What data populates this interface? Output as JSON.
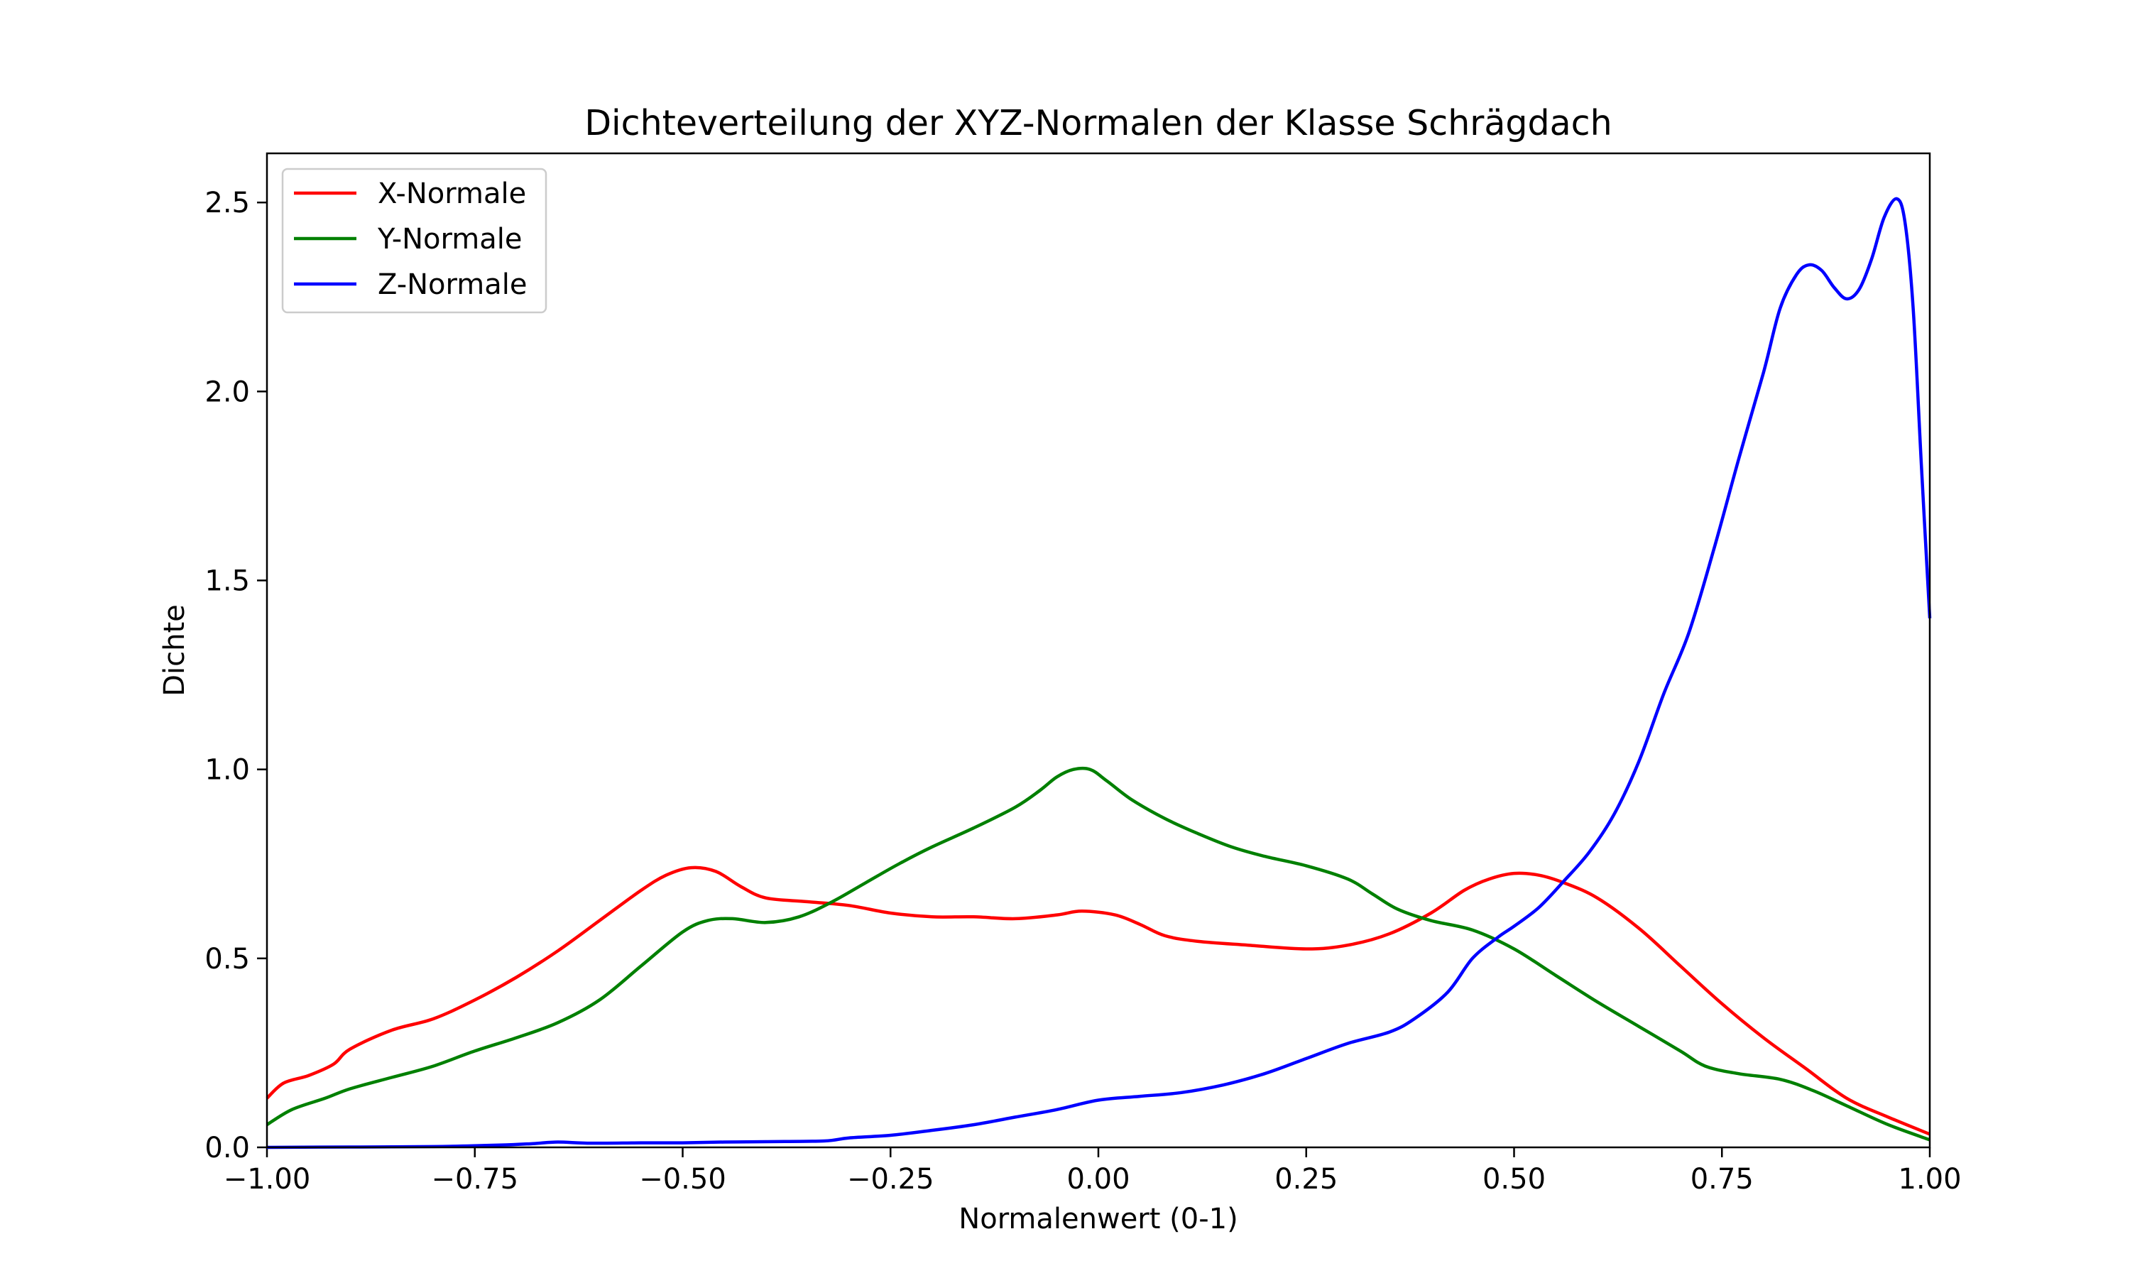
{
  "chart_data": {
    "type": "line",
    "title": "Dichteverteilung der XYZ-Normalen der Klasse Schrägdach",
    "xlabel": "Normalenwert (0-1)",
    "ylabel": "Dichte",
    "xlim": [
      -1.0,
      1.0
    ],
    "ylim": [
      0.0,
      2.63
    ],
    "grid": false,
    "legend_position": "upper left",
    "x_ticks": [
      -1.0,
      -0.75,
      -0.5,
      -0.25,
      0.0,
      0.25,
      0.5,
      0.75,
      1.0
    ],
    "x_tick_labels": [
      "−1.00",
      "−0.75",
      "−0.50",
      "−0.25",
      "0.00",
      "0.25",
      "0.50",
      "0.75",
      "1.00"
    ],
    "y_ticks": [
      0.0,
      0.5,
      1.0,
      1.5,
      2.0,
      2.5
    ],
    "y_tick_labels": [
      "0.0",
      "0.5",
      "1.0",
      "1.5",
      "2.0",
      "2.5"
    ],
    "series": [
      {
        "name": "X-Normale",
        "color": "#ff0000",
        "points": [
          [
            -1.0,
            0.13
          ],
          [
            -0.98,
            0.17
          ],
          [
            -0.95,
            0.19
          ],
          [
            -0.92,
            0.22
          ],
          [
            -0.9,
            0.26
          ],
          [
            -0.85,
            0.31
          ],
          [
            -0.8,
            0.34
          ],
          [
            -0.75,
            0.39
          ],
          [
            -0.7,
            0.45
          ],
          [
            -0.65,
            0.52
          ],
          [
            -0.6,
            0.6
          ],
          [
            -0.55,
            0.68
          ],
          [
            -0.52,
            0.72
          ],
          [
            -0.49,
            0.74
          ],
          [
            -0.46,
            0.73
          ],
          [
            -0.43,
            0.69
          ],
          [
            -0.4,
            0.66
          ],
          [
            -0.35,
            0.65
          ],
          [
            -0.3,
            0.64
          ],
          [
            -0.25,
            0.62
          ],
          [
            -0.2,
            0.61
          ],
          [
            -0.15,
            0.61
          ],
          [
            -0.1,
            0.605
          ],
          [
            -0.05,
            0.615
          ],
          [
            -0.02,
            0.625
          ],
          [
            0.02,
            0.615
          ],
          [
            0.05,
            0.59
          ],
          [
            0.08,
            0.56
          ],
          [
            0.12,
            0.545
          ],
          [
            0.18,
            0.535
          ],
          [
            0.25,
            0.525
          ],
          [
            0.3,
            0.535
          ],
          [
            0.35,
            0.565
          ],
          [
            0.4,
            0.62
          ],
          [
            0.44,
            0.68
          ],
          [
            0.47,
            0.71
          ],
          [
            0.5,
            0.725
          ],
          [
            0.53,
            0.72
          ],
          [
            0.56,
            0.7
          ],
          [
            0.6,
            0.66
          ],
          [
            0.65,
            0.58
          ],
          [
            0.7,
            0.48
          ],
          [
            0.75,
            0.38
          ],
          [
            0.8,
            0.29
          ],
          [
            0.85,
            0.21
          ],
          [
            0.9,
            0.13
          ],
          [
            0.95,
            0.08
          ],
          [
            1.0,
            0.035
          ]
        ]
      },
      {
        "name": "Y-Normale",
        "color": "#008000",
        "points": [
          [
            -1.0,
            0.06
          ],
          [
            -0.97,
            0.1
          ],
          [
            -0.93,
            0.13
          ],
          [
            -0.9,
            0.155
          ],
          [
            -0.85,
            0.185
          ],
          [
            -0.8,
            0.215
          ],
          [
            -0.75,
            0.255
          ],
          [
            -0.7,
            0.29
          ],
          [
            -0.65,
            0.33
          ],
          [
            -0.6,
            0.39
          ],
          [
            -0.55,
            0.48
          ],
          [
            -0.5,
            0.57
          ],
          [
            -0.47,
            0.6
          ],
          [
            -0.44,
            0.605
          ],
          [
            -0.4,
            0.595
          ],
          [
            -0.36,
            0.61
          ],
          [
            -0.32,
            0.65
          ],
          [
            -0.28,
            0.7
          ],
          [
            -0.24,
            0.75
          ],
          [
            -0.2,
            0.795
          ],
          [
            -0.15,
            0.845
          ],
          [
            -0.1,
            0.9
          ],
          [
            -0.07,
            0.945
          ],
          [
            -0.05,
            0.98
          ],
          [
            -0.03,
            1.0
          ],
          [
            -0.01,
            1.0
          ],
          [
            0.01,
            0.97
          ],
          [
            0.04,
            0.92
          ],
          [
            0.08,
            0.87
          ],
          [
            0.12,
            0.83
          ],
          [
            0.16,
            0.795
          ],
          [
            0.2,
            0.77
          ],
          [
            0.25,
            0.745
          ],
          [
            0.3,
            0.71
          ],
          [
            0.33,
            0.67
          ],
          [
            0.36,
            0.63
          ],
          [
            0.4,
            0.6
          ],
          [
            0.45,
            0.575
          ],
          [
            0.5,
            0.525
          ],
          [
            0.55,
            0.455
          ],
          [
            0.6,
            0.385
          ],
          [
            0.65,
            0.32
          ],
          [
            0.7,
            0.255
          ],
          [
            0.73,
            0.215
          ],
          [
            0.77,
            0.195
          ],
          [
            0.82,
            0.18
          ],
          [
            0.86,
            0.15
          ],
          [
            0.9,
            0.11
          ],
          [
            0.95,
            0.06
          ],
          [
            1.0,
            0.02
          ]
        ]
      },
      {
        "name": "Z-Normale",
        "color": "#0000ff",
        "points": [
          [
            -1.0,
            0.0
          ],
          [
            -0.9,
            0.001
          ],
          [
            -0.8,
            0.002
          ],
          [
            -0.72,
            0.006
          ],
          [
            -0.68,
            0.01
          ],
          [
            -0.65,
            0.014
          ],
          [
            -0.61,
            0.011
          ],
          [
            -0.55,
            0.012
          ],
          [
            -0.5,
            0.012
          ],
          [
            -0.45,
            0.014
          ],
          [
            -0.4,
            0.015
          ],
          [
            -0.33,
            0.017
          ],
          [
            -0.3,
            0.025
          ],
          [
            -0.25,
            0.032
          ],
          [
            -0.2,
            0.045
          ],
          [
            -0.15,
            0.06
          ],
          [
            -0.1,
            0.08
          ],
          [
            -0.05,
            0.1
          ],
          [
            0.0,
            0.125
          ],
          [
            0.05,
            0.135
          ],
          [
            0.1,
            0.145
          ],
          [
            0.15,
            0.165
          ],
          [
            0.2,
            0.195
          ],
          [
            0.25,
            0.235
          ],
          [
            0.3,
            0.275
          ],
          [
            0.35,
            0.305
          ],
          [
            0.38,
            0.34
          ],
          [
            0.42,
            0.41
          ],
          [
            0.45,
            0.5
          ],
          [
            0.48,
            0.555
          ],
          [
            0.5,
            0.585
          ],
          [
            0.53,
            0.635
          ],
          [
            0.56,
            0.705
          ],
          [
            0.59,
            0.78
          ],
          [
            0.62,
            0.88
          ],
          [
            0.65,
            1.02
          ],
          [
            0.68,
            1.2
          ],
          [
            0.71,
            1.36
          ],
          [
            0.74,
            1.58
          ],
          [
            0.77,
            1.82
          ],
          [
            0.8,
            2.05
          ],
          [
            0.82,
            2.22
          ],
          [
            0.84,
            2.31
          ],
          [
            0.855,
            2.335
          ],
          [
            0.87,
            2.32
          ],
          [
            0.885,
            2.275
          ],
          [
            0.9,
            2.245
          ],
          [
            0.915,
            2.27
          ],
          [
            0.93,
            2.35
          ],
          [
            0.945,
            2.46
          ],
          [
            0.96,
            2.51
          ],
          [
            0.97,
            2.45
          ],
          [
            0.98,
            2.22
          ],
          [
            0.99,
            1.8
          ],
          [
            1.0,
            1.4
          ]
        ]
      }
    ]
  }
}
